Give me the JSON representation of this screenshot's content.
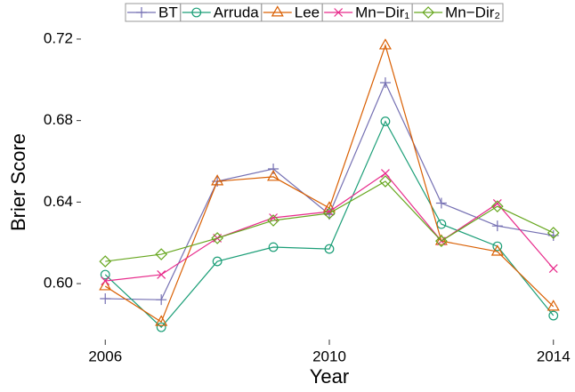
{
  "chart_data": {
    "type": "line",
    "xlabel": "Year",
    "ylabel": "Brier Score",
    "xlim": [
      2005.71,
      2014.29
    ],
    "xticks": [
      2006,
      2010,
      2014
    ],
    "ylim": [
      0.5756,
      0.7239
    ],
    "yticks": [
      {
        "value": 0.6,
        "label": "0.60"
      },
      0.64,
      0.68,
      0.72
    ],
    "grid": false,
    "legend": "top",
    "x": [
      2006,
      2007,
      2008,
      2009,
      2010,
      2011,
      2012,
      2013,
      2014
    ],
    "series": [
      {
        "name": "BT",
        "color": "#7570b3",
        "marker": "plus",
        "values": [
          0.5926,
          0.5921,
          0.6502,
          0.6563,
          0.634,
          0.6986,
          0.6395,
          0.6283,
          0.6236
        ]
      },
      {
        "name": "Arruda",
        "color": "#1b9e77",
        "marker": "circle",
        "values": [
          0.6044,
          0.5786,
          0.6109,
          0.6179,
          0.617,
          0.6796,
          0.6292,
          0.6183,
          0.5843
        ]
      },
      {
        "name": "Lee",
        "color": "#d95f02",
        "marker": "triangle",
        "values": [
          0.5987,
          0.5812,
          0.6502,
          0.6524,
          0.6371,
          0.7169,
          0.6209,
          0.6157,
          0.5887
        ]
      },
      {
        "name": "Mn−Dir₁",
        "color": "#e7298a",
        "marker": "x",
        "values": [
          0.6013,
          0.6044,
          0.6223,
          0.6323,
          0.6353,
          0.6541,
          0.6209,
          0.6393,
          0.6074
        ]
      },
      {
        "name": "Mn−Dir₂",
        "color": "#66a61e",
        "marker": "diamond",
        "values": [
          0.6109,
          0.6144,
          0.6223,
          0.631,
          0.6345,
          0.6502,
          0.6209,
          0.6379,
          0.6249
        ]
      }
    ]
  }
}
